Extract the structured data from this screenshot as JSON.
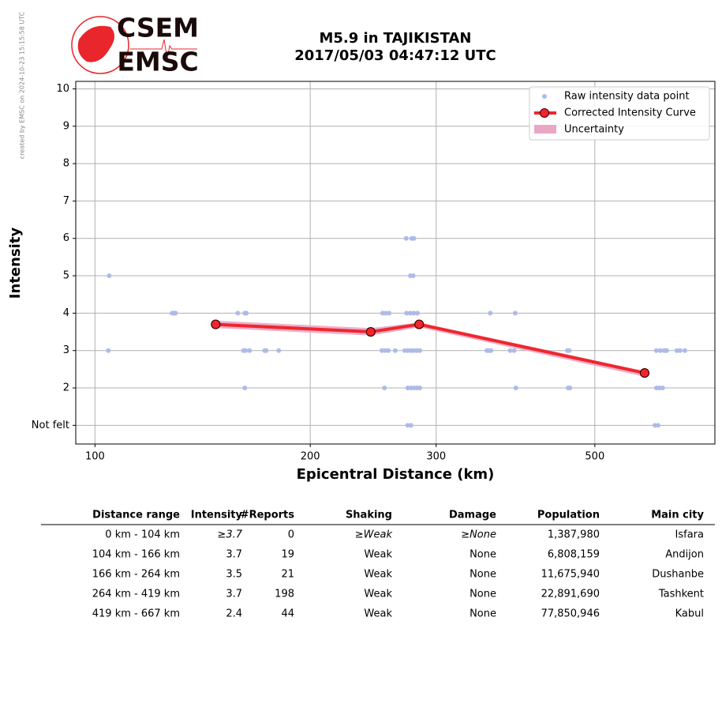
{
  "side_note": "created by EMSC on 2024-10-23 15:15:58 UTC",
  "logo": {
    "top": "CSEM",
    "bottom": "EMSC"
  },
  "chart_data": {
    "type": "scatter-line",
    "title": "M5.9 in TAJIKISTAN",
    "subtitle": "2017/05/03 04:47:12 UTC",
    "x_label": "Epicentral Distance (km)",
    "y_label": "Intensity",
    "xscale": "log",
    "xlim": [
      94,
      736
    ],
    "xticks": [
      100,
      200,
      300,
      500
    ],
    "ylim": [
      0.5,
      10.2
    ],
    "yticks": [
      {
        "value": 1,
        "label": "Not felt"
      },
      2,
      3,
      4,
      5,
      6,
      7,
      8,
      9,
      10
    ],
    "grid": true,
    "legend": "upper right",
    "series": [
      {
        "name": "Raw intensity data point",
        "color": "#aebbe8",
        "x": [
          104.7,
          104.4,
          128.2,
          128.9,
          129.6,
          158.4,
          162,
          162.8,
          161.3,
          162.4,
          164.5,
          162,
          172.7,
          173.5,
          180.7,
          252.5,
          255.1,
          257.8,
          251.9,
          254.4,
          257.1,
          254,
          263,
          272.4,
          277.3,
          279.2,
          276,
          278.6,
          272.7,
          276,
          279.2,
          282.5,
          271.1,
          273.7,
          276.6,
          279.2,
          281.8,
          284.6,
          273.7,
          276.6,
          279.2,
          281.8,
          284.6,
          273.7,
          276.6,
          353.2,
          355.6,
          357.9,
          357.1,
          380.7,
          385.6,
          387,
          387.7,
          457.8,
          460.4,
          459,
          461.5,
          609.6,
          617.4,
          625.3,
          630.1,
          651.2,
          657.8,
          668,
          609.6,
          615.8,
          622,
          606.7,
          612.8
        ],
        "values": [
          5,
          3,
          4,
          4,
          4,
          4,
          4,
          4,
          3,
          3,
          3,
          2,
          3,
          3,
          3,
          4,
          4,
          4,
          3,
          3,
          3,
          2,
          3,
          6,
          6,
          6,
          5,
          5,
          4,
          4,
          4,
          4,
          3,
          3,
          3,
          3,
          3,
          3,
          2,
          2,
          2,
          2,
          2,
          1,
          1,
          3,
          3,
          3,
          4,
          3,
          3,
          4,
          2,
          3,
          3,
          2,
          2,
          3,
          3,
          3,
          3,
          3,
          3,
          3,
          2,
          2,
          2,
          1,
          1
        ]
      },
      {
        "name": "Corrected Intensity Curve",
        "color": "#f0262e",
        "x": [
          147.5,
          243,
          284,
          587
        ],
        "values": [
          3.7,
          3.5,
          3.7,
          2.4
        ]
      },
      {
        "name": "Uncertainty",
        "color": "#e8a8c4",
        "x": [
          147.5,
          243,
          284,
          587
        ],
        "lower": [
          3.6,
          3.4,
          3.62,
          2.3
        ],
        "upper": [
          3.8,
          3.6,
          3.75,
          2.45
        ]
      }
    ]
  },
  "table": {
    "header": [
      "Distance range",
      "Intensity",
      "#Reports",
      "Shaking",
      "Damage",
      "Population",
      "Main city"
    ],
    "rows": [
      [
        "0 km -  104 km",
        "≥3.7",
        "0",
        "≥Weak",
        "≥None",
        "1,387,980",
        "Isfara"
      ],
      [
        "104 km -  166 km",
        "3.7",
        "19",
        "Weak",
        "None",
        "6,808,159",
        "Andijon"
      ],
      [
        "166 km -  264 km",
        "3.5",
        "21",
        "Weak",
        "None",
        "11,675,940",
        "Dushanbe"
      ],
      [
        "264 km -  419 km",
        "3.7",
        "198",
        "Weak",
        "None",
        "22,891,690",
        "Tashkent"
      ],
      [
        "419 km -  667 km",
        "2.4",
        "44",
        "Weak",
        "None",
        "77,850,946",
        "Kabul"
      ]
    ]
  }
}
